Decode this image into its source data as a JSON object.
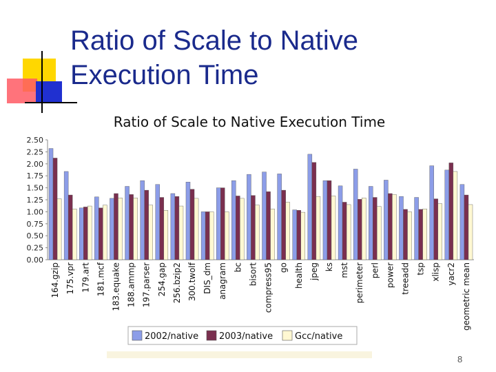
{
  "slide": {
    "title_line1": "Ratio of Scale to Native",
    "title_line2": "Execution Time",
    "page_number": "8"
  },
  "colors": {
    "title": "#1a2a8c",
    "deco_yellow": "#ffd700",
    "deco_red": "#ff5a64",
    "deco_blue": "#2030d0",
    "deco_line": "#000000"
  },
  "chart_data": {
    "type": "bar",
    "title": "Ratio of Scale to Native Execution Time",
    "xlabel": "",
    "ylabel": "",
    "ylim": [
      0,
      2.5
    ],
    "yticks": [
      "0.00",
      "0.25",
      "0.50",
      "0.75",
      "1.00",
      "1.25",
      "1.50",
      "1.75",
      "2.00",
      "2.25",
      "2.50"
    ],
    "grid": false,
    "legend_position": "bottom",
    "categories": [
      "164.gzip",
      "175.vpr",
      "179.art",
      "181.mcf",
      "183.equake",
      "188.ammp",
      "197.parser",
      "254.gap",
      "256.bzip2",
      "300.twolf",
      "DIS_dm",
      "anagram",
      "bc",
      "bisort",
      "compress95",
      "go",
      "health",
      "jpeg",
      "ks",
      "mst",
      "perimeter",
      "perl",
      "power",
      "treeadd",
      "tsp",
      "xlisp",
      "yacr2",
      "geometric mean"
    ],
    "series": [
      {
        "name": "2002/native",
        "color": "#8c9de8",
        "values": [
          2.32,
          1.84,
          1.08,
          1.31,
          1.28,
          1.53,
          1.65,
          1.57,
          1.38,
          1.62,
          1.0,
          1.5,
          1.65,
          1.78,
          1.83,
          1.79,
          1.04,
          2.2,
          1.65,
          1.54,
          1.89,
          1.53,
          1.66,
          1.32,
          1.3,
          1.96,
          1.87,
          1.57
        ]
      },
      {
        "name": "2003/native",
        "color": "#7a2f4f",
        "values": [
          2.12,
          1.35,
          1.1,
          1.08,
          1.38,
          1.36,
          1.45,
          1.3,
          1.32,
          1.47,
          1.0,
          1.5,
          1.33,
          1.34,
          1.42,
          1.45,
          1.03,
          2.03,
          1.65,
          1.2,
          1.26,
          1.3,
          1.38,
          1.05,
          1.05,
          1.27,
          2.02,
          1.35
        ]
      },
      {
        "name": "Gcc/native",
        "color": "#fff8d2",
        "values": [
          1.27,
          1.06,
          1.12,
          1.14,
          1.29,
          1.29,
          1.14,
          1.03,
          1.12,
          1.28,
          1.0,
          1.0,
          1.28,
          1.14,
          1.06,
          1.2,
          0.99,
          1.32,
          1.33,
          1.15,
          1.29,
          1.11,
          1.36,
          1.0,
          1.06,
          1.17,
          1.84,
          1.15
        ]
      }
    ]
  }
}
